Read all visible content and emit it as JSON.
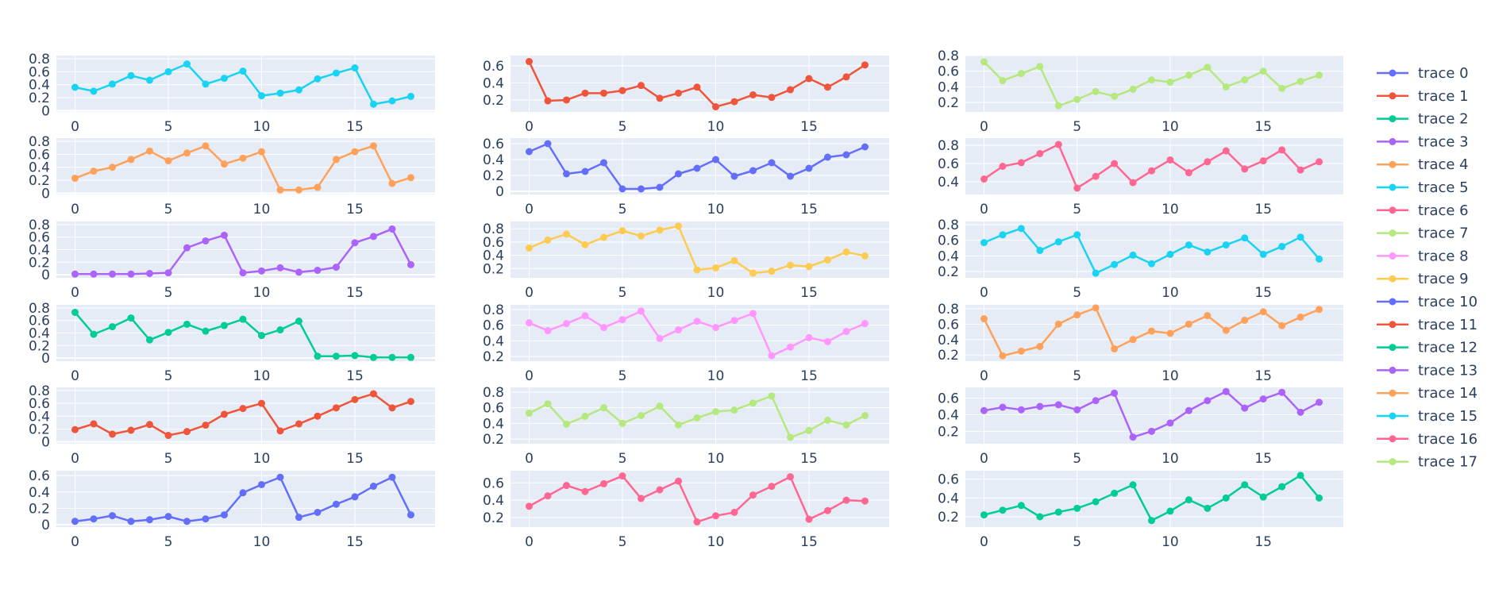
{
  "chart_data": {
    "type": "line",
    "subplot_grid": {
      "rows": 6,
      "cols": 3
    },
    "x": [
      0,
      1,
      2,
      3,
      4,
      5,
      6,
      7,
      8,
      9,
      10,
      11,
      12,
      13,
      14,
      15,
      16,
      17,
      18
    ],
    "x_ticks": [
      0,
      5,
      10,
      15
    ],
    "grid": true,
    "legend_placement": "right",
    "colors": {
      "plot_bg": "#e5ecf6",
      "grid": "#ffffff",
      "tick_text": "#2a3f5f"
    },
    "series": [
      {
        "name": "trace 0",
        "color": "#636efa",
        "subplot": [
          6,
          1
        ],
        "y_ticks": [
          0,
          0.2,
          0.4,
          0.6
        ],
        "y_range": [
          -0.03,
          0.66
        ],
        "values": [
          0.04,
          0.07,
          0.11,
          0.04,
          0.06,
          0.1,
          0.04,
          0.07,
          0.12,
          0.39,
          0.49,
          0.58,
          0.09,
          0.15,
          0.25,
          0.34,
          0.47,
          0.58,
          0.12
        ]
      },
      {
        "name": "trace 1",
        "color": "#EF553B",
        "subplot": [
          5,
          1
        ],
        "y_ticks": [
          0,
          0.2,
          0.4,
          0.6,
          0.8
        ],
        "y_range": [
          -0.03,
          0.85
        ],
        "values": [
          0.19,
          0.28,
          0.12,
          0.18,
          0.27,
          0.1,
          0.16,
          0.26,
          0.43,
          0.52,
          0.6,
          0.17,
          0.28,
          0.4,
          0.53,
          0.66,
          0.75,
          0.53,
          0.63
        ]
      },
      {
        "name": "trace 2",
        "color": "#00cc96",
        "subplot": [
          4,
          1
        ],
        "y_ticks": [
          0,
          0.2,
          0.4,
          0.6,
          0.8
        ],
        "y_range": [
          -0.05,
          0.85
        ],
        "values": [
          0.73,
          0.38,
          0.5,
          0.64,
          0.29,
          0.41,
          0.54,
          0.43,
          0.52,
          0.62,
          0.36,
          0.45,
          0.59,
          0.03,
          0.03,
          0.04,
          0.01,
          0.01,
          0.01
        ]
      },
      {
        "name": "trace 3",
        "color": "#ab63fa",
        "subplot": [
          3,
          1
        ],
        "y_ticks": [
          0,
          0.2,
          0.4,
          0.6,
          0.8
        ],
        "y_range": [
          -0.05,
          0.85
        ],
        "values": [
          0.01,
          0.01,
          0.01,
          0.01,
          0.02,
          0.03,
          0.43,
          0.54,
          0.63,
          0.03,
          0.06,
          0.11,
          0.04,
          0.07,
          0.12,
          0.51,
          0.61,
          0.73,
          0.16
        ]
      },
      {
        "name": "trace 4",
        "color": "#FFA15A",
        "subplot": [
          2,
          1
        ],
        "y_ticks": [
          0,
          0.2,
          0.4,
          0.6,
          0.8
        ],
        "y_range": [
          -0.02,
          0.85
        ],
        "values": [
          0.23,
          0.34,
          0.4,
          0.52,
          0.65,
          0.5,
          0.62,
          0.73,
          0.45,
          0.54,
          0.64,
          0.05,
          0.05,
          0.09,
          0.52,
          0.64,
          0.73,
          0.15,
          0.24
        ]
      },
      {
        "name": "trace 5",
        "color": "#19d3f3",
        "subplot": [
          1,
          1
        ],
        "y_ticks": [
          0,
          0.2,
          0.4,
          0.6,
          0.8
        ],
        "y_range": [
          -0.02,
          0.85
        ],
        "values": [
          0.36,
          0.3,
          0.41,
          0.54,
          0.47,
          0.6,
          0.72,
          0.41,
          0.5,
          0.61,
          0.23,
          0.27,
          0.32,
          0.49,
          0.58,
          0.66,
          0.1,
          0.15,
          0.22
        ]
      },
      {
        "name": "trace 6",
        "color": "#FF6692",
        "subplot": [
          6,
          2
        ],
        "y_ticks": [
          0.2,
          0.4,
          0.6
        ],
        "y_range": [
          0.09,
          0.74
        ],
        "values": [
          0.33,
          0.45,
          0.57,
          0.5,
          0.59,
          0.68,
          0.42,
          0.52,
          0.62,
          0.15,
          0.22,
          0.26,
          0.46,
          0.56,
          0.67,
          0.18,
          0.28,
          0.4,
          0.39
        ]
      },
      {
        "name": "trace 7",
        "color": "#B6E880",
        "subplot": [
          5,
          2
        ],
        "y_ticks": [
          0.2,
          0.4,
          0.6,
          0.8
        ],
        "y_range": [
          0.14,
          0.86
        ],
        "values": [
          0.53,
          0.65,
          0.39,
          0.49,
          0.6,
          0.4,
          0.5,
          0.62,
          0.38,
          0.47,
          0.55,
          0.57,
          0.66,
          0.75,
          0.22,
          0.31,
          0.44,
          0.38,
          0.5
        ]
      },
      {
        "name": "trace 8",
        "color": "#FF97FF",
        "subplot": [
          4,
          2
        ],
        "y_ticks": [
          0.2,
          0.4,
          0.6,
          0.8
        ],
        "y_range": [
          0.14,
          0.86
        ],
        "values": [
          0.63,
          0.53,
          0.62,
          0.72,
          0.57,
          0.67,
          0.78,
          0.43,
          0.54,
          0.65,
          0.57,
          0.66,
          0.75,
          0.21,
          0.32,
          0.44,
          0.39,
          0.52,
          0.62
        ]
      },
      {
        "name": "trace 9",
        "color": "#FECB52",
        "subplot": [
          3,
          2
        ],
        "y_ticks": [
          0.2,
          0.4,
          0.6,
          0.8
        ],
        "y_range": [
          0.06,
          0.91
        ],
        "values": [
          0.51,
          0.63,
          0.72,
          0.56,
          0.67,
          0.77,
          0.69,
          0.78,
          0.84,
          0.18,
          0.21,
          0.32,
          0.13,
          0.16,
          0.25,
          0.23,
          0.33,
          0.45,
          0.39
        ]
      },
      {
        "name": "trace 10",
        "color": "#636efa",
        "subplot": [
          2,
          2
        ],
        "y_ticks": [
          0,
          0.2,
          0.4,
          0.6
        ],
        "y_range": [
          -0.04,
          0.67
        ],
        "values": [
          0.5,
          0.6,
          0.22,
          0.25,
          0.36,
          0.03,
          0.03,
          0.05,
          0.22,
          0.29,
          0.4,
          0.19,
          0.26,
          0.36,
          0.19,
          0.29,
          0.43,
          0.46,
          0.56
        ]
      },
      {
        "name": "trace 11",
        "color": "#EF553B",
        "subplot": [
          1,
          2
        ],
        "y_ticks": [
          0.2,
          0.4,
          0.6
        ],
        "y_range": [
          0.06,
          0.72
        ],
        "values": [
          0.65,
          0.19,
          0.2,
          0.28,
          0.28,
          0.31,
          0.37,
          0.22,
          0.28,
          0.35,
          0.12,
          0.18,
          0.26,
          0.23,
          0.32,
          0.45,
          0.35,
          0.47,
          0.61
        ]
      },
      {
        "name": "trace 12",
        "color": "#00cc96",
        "subplot": [
          6,
          3
        ],
        "y_ticks": [
          0.2,
          0.4,
          0.6
        ],
        "y_range": [
          0.09,
          0.69
        ],
        "values": [
          0.22,
          0.27,
          0.32,
          0.2,
          0.25,
          0.29,
          0.36,
          0.45,
          0.54,
          0.16,
          0.26,
          0.38,
          0.29,
          0.4,
          0.54,
          0.41,
          0.52,
          0.64,
          0.4
        ]
      },
      {
        "name": "trace 13",
        "color": "#ab63fa",
        "subplot": [
          5,
          3
        ],
        "y_ticks": [
          0.2,
          0.4,
          0.6
        ],
        "y_range": [
          0.05,
          0.73
        ],
        "values": [
          0.45,
          0.49,
          0.46,
          0.5,
          0.52,
          0.46,
          0.57,
          0.66,
          0.13,
          0.2,
          0.3,
          0.45,
          0.57,
          0.68,
          0.48,
          0.59,
          0.67,
          0.43,
          0.55
        ]
      },
      {
        "name": "trace 14",
        "color": "#FFA15A",
        "subplot": [
          4,
          3
        ],
        "y_ticks": [
          0.2,
          0.4,
          0.6,
          0.8
        ],
        "y_range": [
          0.12,
          0.85
        ],
        "values": [
          0.67,
          0.19,
          0.25,
          0.31,
          0.6,
          0.72,
          0.81,
          0.28,
          0.4,
          0.51,
          0.48,
          0.6,
          0.71,
          0.52,
          0.65,
          0.76,
          0.58,
          0.69,
          0.79
        ]
      },
      {
        "name": "trace 15",
        "color": "#19d3f3",
        "subplot": [
          3,
          3
        ],
        "y_ticks": [
          0.2,
          0.4,
          0.6,
          0.8
        ],
        "y_range": [
          0.12,
          0.84
        ],
        "values": [
          0.57,
          0.67,
          0.75,
          0.47,
          0.58,
          0.67,
          0.18,
          0.29,
          0.41,
          0.3,
          0.42,
          0.54,
          0.45,
          0.54,
          0.63,
          0.42,
          0.52,
          0.64,
          0.36
        ]
      },
      {
        "name": "trace 16",
        "color": "#FF6692",
        "subplot": [
          2,
          3
        ],
        "y_ticks": [
          0.4,
          0.6,
          0.8
        ],
        "y_range": [
          0.26,
          0.88
        ],
        "values": [
          0.43,
          0.57,
          0.61,
          0.71,
          0.81,
          0.33,
          0.46,
          0.6,
          0.39,
          0.52,
          0.64,
          0.5,
          0.62,
          0.74,
          0.54,
          0.63,
          0.75,
          0.53,
          0.62
        ]
      },
      {
        "name": "trace 17",
        "color": "#B6E880",
        "subplot": [
          1,
          3
        ],
        "y_ticks": [
          0.2,
          0.4,
          0.6,
          0.8
        ],
        "y_range": [
          0.08,
          0.8
        ],
        "values": [
          0.72,
          0.48,
          0.57,
          0.66,
          0.16,
          0.24,
          0.34,
          0.28,
          0.37,
          0.49,
          0.46,
          0.55,
          0.65,
          0.4,
          0.49,
          0.6,
          0.38,
          0.47,
          0.55
        ]
      }
    ]
  }
}
